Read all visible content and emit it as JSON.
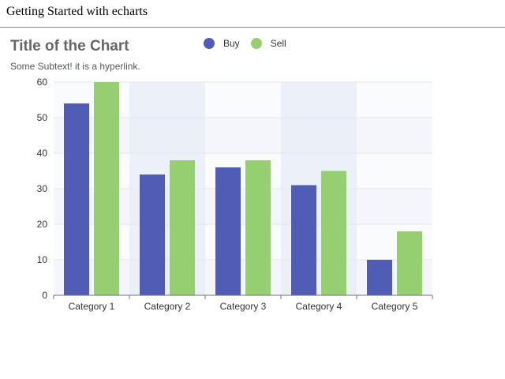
{
  "page": {
    "header": "Getting Started with echarts"
  },
  "chart_data": {
    "type": "bar",
    "title": "Title of the Chart",
    "subtitle": "Some Subtext! it is a hyperlink.",
    "categories": [
      "Category 1",
      "Category 2",
      "Category 3",
      "Category 4",
      "Category 5"
    ],
    "series": [
      {
        "name": "Buy",
        "values": [
          54,
          34,
          36,
          31,
          10
        ],
        "color": "#4f5db5"
      },
      {
        "name": "Sell",
        "values": [
          60,
          38,
          38,
          35,
          18
        ],
        "color": "#96ce72"
      }
    ],
    "ylim": [
      0,
      60
    ],
    "yticks": [
      0,
      10,
      20,
      30,
      40,
      50,
      60
    ],
    "legend": "top",
    "grid": true,
    "colors": {
      "split_area": [
        "#f4f6fb",
        "#fafbfd"
      ],
      "shadow_band": "#e9eef8",
      "gridline": "#e0e6f1",
      "axis": "#6e7079"
    }
  }
}
